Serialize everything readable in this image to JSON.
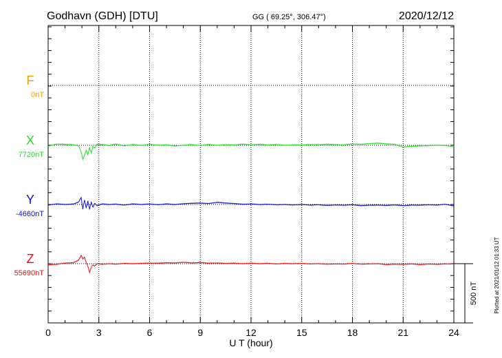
{
  "header": {
    "station": "Godhavn (GDH)  [DTU]",
    "coords": "GG ( 69.25°, 306.47°)",
    "date": "2020/12/12"
  },
  "footer": {
    "plotted_note": "Plotted at 2021/01/12 01:33 UT",
    "scale_label": "500 nT"
  },
  "chart_data": {
    "type": "line",
    "title": "Godhavn (GDH)  [DTU]",
    "xlabel": "U T (hour)",
    "xlim": [
      0,
      24
    ],
    "x_ticks": [
      0,
      3,
      6,
      9,
      12,
      15,
      18,
      21,
      24
    ],
    "x_tick_labels": [
      "0",
      "3",
      "6",
      "9",
      "12",
      "15",
      "18",
      "21",
      "24"
    ],
    "grid": true,
    "scale_bar_nT": 500,
    "series": [
      {
        "name": "F",
        "baseline_label": "0nT",
        "color": "#f0a000",
        "has_data": false,
        "points": []
      },
      {
        "name": "X",
        "baseline_label": "7720nT",
        "color": "#22dd22",
        "has_data": true,
        "points": [
          [
            0,
            -8
          ],
          [
            0.5,
            10
          ],
          [
            1,
            8
          ],
          [
            1.5,
            4
          ],
          [
            1.8,
            -5
          ],
          [
            1.95,
            -55
          ],
          [
            2.05,
            -120
          ],
          [
            2.15,
            -85
          ],
          [
            2.25,
            -40
          ],
          [
            2.35,
            -80
          ],
          [
            2.45,
            -20
          ],
          [
            2.55,
            -65
          ],
          [
            2.65,
            -10
          ],
          [
            2.75,
            -25
          ],
          [
            2.9,
            10
          ],
          [
            3.2,
            5
          ],
          [
            3.6,
            -3
          ],
          [
            4,
            10
          ],
          [
            4.5,
            -5
          ],
          [
            5,
            6
          ],
          [
            5.5,
            -2
          ],
          [
            6,
            8
          ],
          [
            6.5,
            0
          ],
          [
            7,
            4
          ],
          [
            7.5,
            -6
          ],
          [
            8,
            0
          ],
          [
            8.5,
            5
          ],
          [
            9,
            -2
          ],
          [
            9.5,
            6
          ],
          [
            10,
            0
          ],
          [
            10.5,
            4
          ],
          [
            11,
            2
          ],
          [
            11.5,
            10
          ],
          [
            12,
            3
          ],
          [
            12.5,
            8
          ],
          [
            13,
            2
          ],
          [
            13.5,
            5
          ],
          [
            14,
            0
          ],
          [
            14.5,
            3
          ],
          [
            15,
            1
          ],
          [
            15.5,
            6
          ],
          [
            16,
            4
          ],
          [
            16.5,
            8
          ],
          [
            17,
            5
          ],
          [
            17.5,
            3
          ],
          [
            18,
            12
          ],
          [
            18.5,
            8
          ],
          [
            19,
            14
          ],
          [
            19.5,
            18
          ],
          [
            20,
            12
          ],
          [
            20.5,
            8
          ],
          [
            21,
            -15
          ],
          [
            21.5,
            -8
          ],
          [
            22,
            -5
          ],
          [
            22.5,
            -3
          ],
          [
            23,
            0
          ],
          [
            23.5,
            -2
          ],
          [
            24,
            -12
          ]
        ]
      },
      {
        "name": "Y",
        "baseline_label": "-4660nT",
        "color": "#1010dd",
        "has_data": true,
        "points": [
          [
            0,
            -5
          ],
          [
            0.5,
            5
          ],
          [
            1,
            0
          ],
          [
            1.5,
            4
          ],
          [
            1.8,
            20
          ],
          [
            1.95,
            60
          ],
          [
            2.05,
            -40
          ],
          [
            2.15,
            40
          ],
          [
            2.25,
            -30
          ],
          [
            2.35,
            30
          ],
          [
            2.45,
            -40
          ],
          [
            2.55,
            20
          ],
          [
            2.65,
            -25
          ],
          [
            2.75,
            10
          ],
          [
            2.9,
            -10
          ],
          [
            3.2,
            5
          ],
          [
            3.6,
            0
          ],
          [
            4,
            3
          ],
          [
            4.5,
            -5
          ],
          [
            5,
            5
          ],
          [
            5.5,
            0
          ],
          [
            6,
            4
          ],
          [
            6.5,
            -2
          ],
          [
            7,
            5
          ],
          [
            7.5,
            0
          ],
          [
            8,
            6
          ],
          [
            8.5,
            10
          ],
          [
            9,
            12
          ],
          [
            9.5,
            8
          ],
          [
            10,
            18
          ],
          [
            10.5,
            12
          ],
          [
            11,
            8
          ],
          [
            11.5,
            2
          ],
          [
            12,
            4
          ],
          [
            12.5,
            0
          ],
          [
            13,
            2
          ],
          [
            13.5,
            -2
          ],
          [
            14,
            0
          ],
          [
            14.5,
            -4
          ],
          [
            15,
            0
          ],
          [
            15.5,
            -5
          ],
          [
            16,
            -2
          ],
          [
            16.5,
            -8
          ],
          [
            17,
            -4
          ],
          [
            17.5,
            -6
          ],
          [
            18,
            -2
          ],
          [
            18.5,
            -10
          ],
          [
            19,
            -6
          ],
          [
            19.5,
            -5
          ],
          [
            20,
            -8
          ],
          [
            20.5,
            -4
          ],
          [
            21,
            -10
          ],
          [
            21.5,
            -5
          ],
          [
            22,
            -6
          ],
          [
            22.5,
            -2
          ],
          [
            23,
            -5
          ],
          [
            23.5,
            2
          ],
          [
            24,
            -12
          ]
        ]
      },
      {
        "name": "Z",
        "baseline_label": "55690nT",
        "color": "#ee1010",
        "has_data": true,
        "points": [
          [
            0,
            -10
          ],
          [
            0.5,
            -5
          ],
          [
            1,
            5
          ],
          [
            1.5,
            8
          ],
          [
            1.8,
            30
          ],
          [
            1.95,
            70
          ],
          [
            2.05,
            40
          ],
          [
            2.15,
            55
          ],
          [
            2.25,
            10
          ],
          [
            2.35,
            -20
          ],
          [
            2.45,
            -75
          ],
          [
            2.55,
            -30
          ],
          [
            2.65,
            -10
          ],
          [
            2.75,
            -20
          ],
          [
            2.9,
            0
          ],
          [
            3.2,
            -5
          ],
          [
            3.6,
            0
          ],
          [
            4,
            -4
          ],
          [
            4.5,
            3
          ],
          [
            5,
            0
          ],
          [
            5.5,
            3
          ],
          [
            6,
            5
          ],
          [
            6.5,
            4
          ],
          [
            7,
            8
          ],
          [
            7.5,
            6
          ],
          [
            8,
            12
          ],
          [
            8.5,
            6
          ],
          [
            9,
            10
          ],
          [
            9.5,
            4
          ],
          [
            10,
            6
          ],
          [
            10.5,
            2
          ],
          [
            11,
            5
          ],
          [
            11.5,
            0
          ],
          [
            12,
            4
          ],
          [
            12.5,
            0
          ],
          [
            13,
            3
          ],
          [
            13.5,
            -2
          ],
          [
            14,
            2
          ],
          [
            14.5,
            0
          ],
          [
            15,
            2
          ],
          [
            15.5,
            -2
          ],
          [
            16,
            0
          ],
          [
            16.5,
            -4
          ],
          [
            17,
            -2
          ],
          [
            17.5,
            -3
          ],
          [
            18,
            2
          ],
          [
            18.5,
            -4
          ],
          [
            19,
            -2
          ],
          [
            19.5,
            0
          ],
          [
            20,
            -8
          ],
          [
            20.5,
            -4
          ],
          [
            21,
            -5
          ],
          [
            21.5,
            -2
          ],
          [
            22,
            -8
          ],
          [
            22.5,
            -3
          ],
          [
            23,
            -5
          ],
          [
            23.5,
            -2
          ],
          [
            24,
            -2
          ]
        ]
      }
    ]
  }
}
